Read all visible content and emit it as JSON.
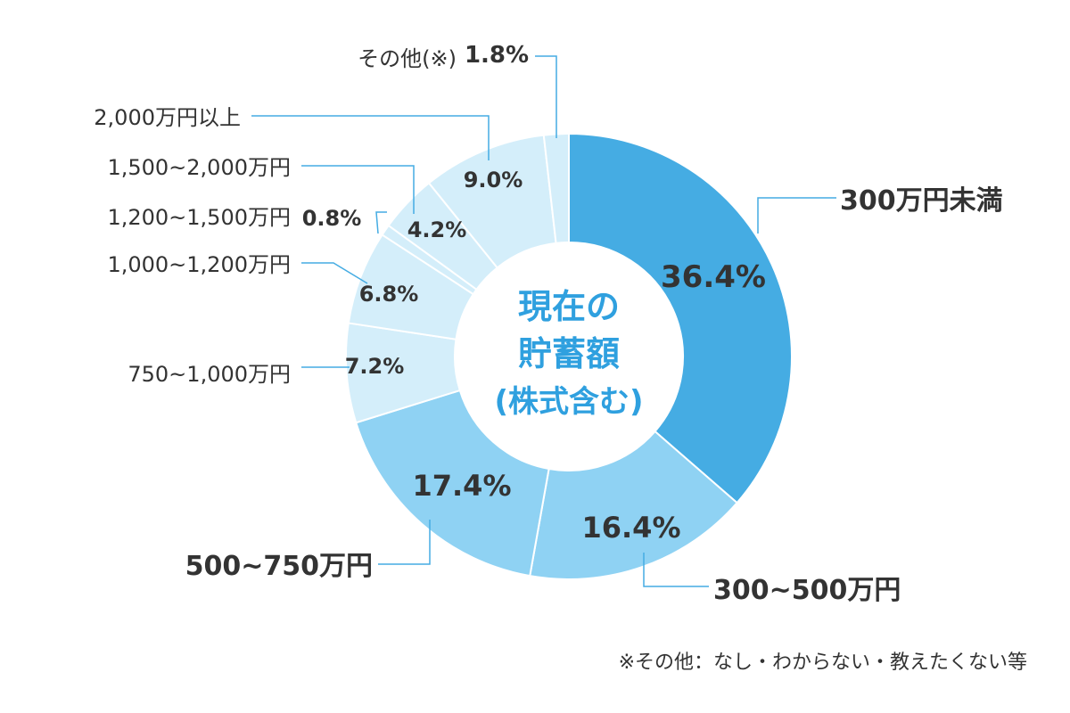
{
  "chart_data": {
    "type": "pie",
    "center_label": [
      "現在の",
      "貯蓄額",
      "(株式含む)"
    ],
    "categories": [
      "300万円未満",
      "300~500万円",
      "500~750万円",
      "750~1,000万円",
      "1,000~1,200万円",
      "1,200~1,500万円",
      "1,500~2,000万円",
      "2,000万円以上",
      "その他(※)"
    ],
    "values": [
      36.4,
      16.4,
      17.4,
      7.2,
      6.8,
      0.8,
      4.2,
      9.0,
      1.8
    ],
    "value_labels": [
      "36.4%",
      "16.4%",
      "17.4%",
      "7.2%",
      "6.8%",
      "0.8%",
      "4.2%",
      "9.0%",
      "1.8%"
    ],
    "colors": [
      "#45ace3",
      "#8fd2f3",
      "#8fd2f3",
      "#d4eefa",
      "#d4eefa",
      "#d4eefa",
      "#d4eefa",
      "#d4eefa",
      "#d4eefa"
    ],
    "footnote": "※その他：なし・わからない・教えたくない等"
  }
}
